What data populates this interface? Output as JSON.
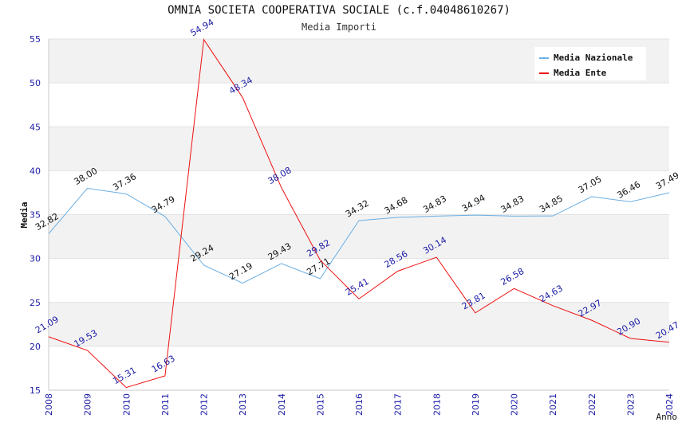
{
  "chart_data": {
    "type": "line",
    "title": "OMNIA SOCIETA COOPERATIVA SOCIALE (c.f.04048610267)",
    "subtitle": "Media Importi",
    "xlabel": "Anno",
    "ylabel": "Media",
    "ylim": [
      15,
      55
    ],
    "yticks": [
      15,
      20,
      25,
      30,
      35,
      40,
      45,
      50,
      55
    ],
    "grid": "horizontal bands",
    "legend_position": "top-right",
    "categories": [
      "2008",
      "2009",
      "2010",
      "2011",
      "2012",
      "2013",
      "2014",
      "2015",
      "2016",
      "2017",
      "2018",
      "2019",
      "2020",
      "2021",
      "2022",
      "2023",
      "2024"
    ],
    "series": [
      {
        "name": "Media Nazionale",
        "color": "#6aaee3",
        "label_color": "#111111",
        "values": [
          32.82,
          38.0,
          37.36,
          34.79,
          29.24,
          27.19,
          29.43,
          27.71,
          34.32,
          34.68,
          34.83,
          34.94,
          34.83,
          34.85,
          37.05,
          36.46,
          37.49
        ],
        "labels": [
          "32.82",
          "38.00",
          "37.36",
          "34.79",
          "29.24",
          "27.19",
          "29.43",
          "27.71",
          "34.32",
          "34.68",
          "34.83",
          "34.94",
          "34.83",
          "34.85",
          "37.05",
          "36.46",
          "37.49"
        ]
      },
      {
        "name": "Media Ente",
        "color": "#ee1111",
        "label_color": "#1a1aa6",
        "values": [
          21.09,
          19.53,
          15.31,
          16.63,
          54.94,
          48.34,
          38.08,
          29.82,
          25.41,
          28.56,
          30.14,
          23.81,
          26.58,
          24.63,
          22.97,
          20.9,
          20.47
        ],
        "labels": [
          "21.09",
          "19.53",
          "15.31",
          "16.63",
          "54.94",
          "48.34",
          "38.08",
          "29.82",
          "25.41",
          "28.56",
          "30.14",
          "23.81",
          "26.58",
          "24.63",
          "22.97",
          "20.90",
          "20.47"
        ]
      }
    ]
  }
}
